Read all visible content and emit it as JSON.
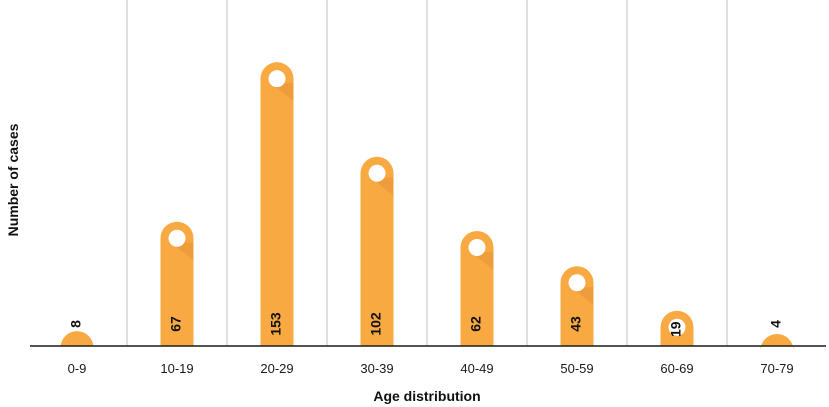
{
  "chart_data": {
    "type": "bar",
    "categories": [
      "0-9",
      "10-19",
      "20-29",
      "30-39",
      "40-49",
      "50-59",
      "60-69",
      "70-79"
    ],
    "values": [
      8,
      67,
      153,
      102,
      62,
      43,
      19,
      4
    ],
    "xlabel": "Age distribution",
    "ylabel": "Number of  cases",
    "ylim": [
      0,
      160
    ],
    "grid": "vertical separators",
    "legend": "none"
  },
  "colors": {
    "bar": "#F9A942",
    "bar_shade": "#E8923A",
    "marker": "#FFFFFF",
    "grid": "#D0D0D0",
    "axis": "#1A1A1A"
  }
}
